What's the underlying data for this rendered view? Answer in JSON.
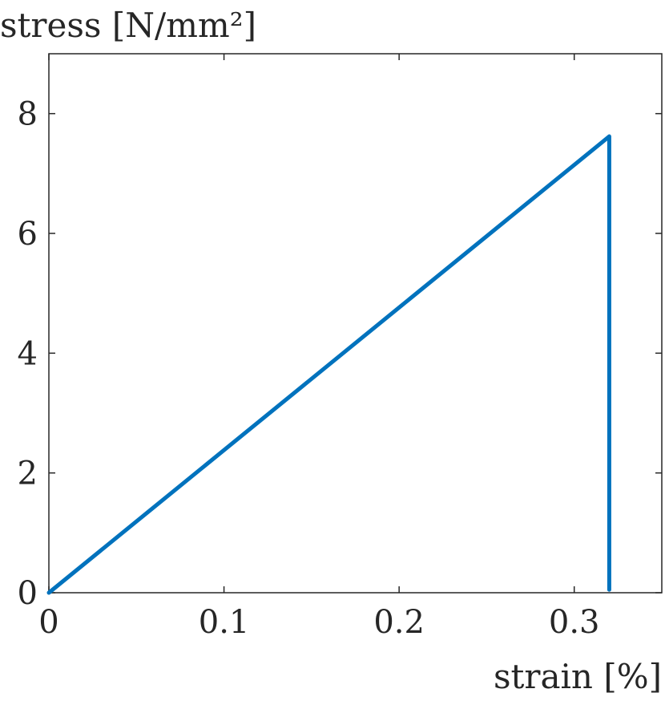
{
  "chart_data": {
    "type": "line",
    "title": "",
    "xlabel": "strain [%]",
    "ylabel": "stress [N/mm²]",
    "xlim": [
      0,
      0.35
    ],
    "ylim": [
      0,
      9
    ],
    "xticks": [
      0,
      0.1,
      0.2,
      0.3
    ],
    "xtick_labels": [
      "0",
      "0.1",
      "0.2",
      "0.3"
    ],
    "yticks": [
      0,
      2,
      4,
      6,
      8
    ],
    "ytick_labels": [
      "0",
      "2",
      "4",
      "6",
      "8"
    ],
    "grid": false,
    "legend": "none",
    "series": [
      {
        "color": "#0072BD",
        "x": [
          0,
          0.32,
          0.32
        ],
        "y": [
          0,
          7.62,
          0.05
        ]
      }
    ]
  }
}
